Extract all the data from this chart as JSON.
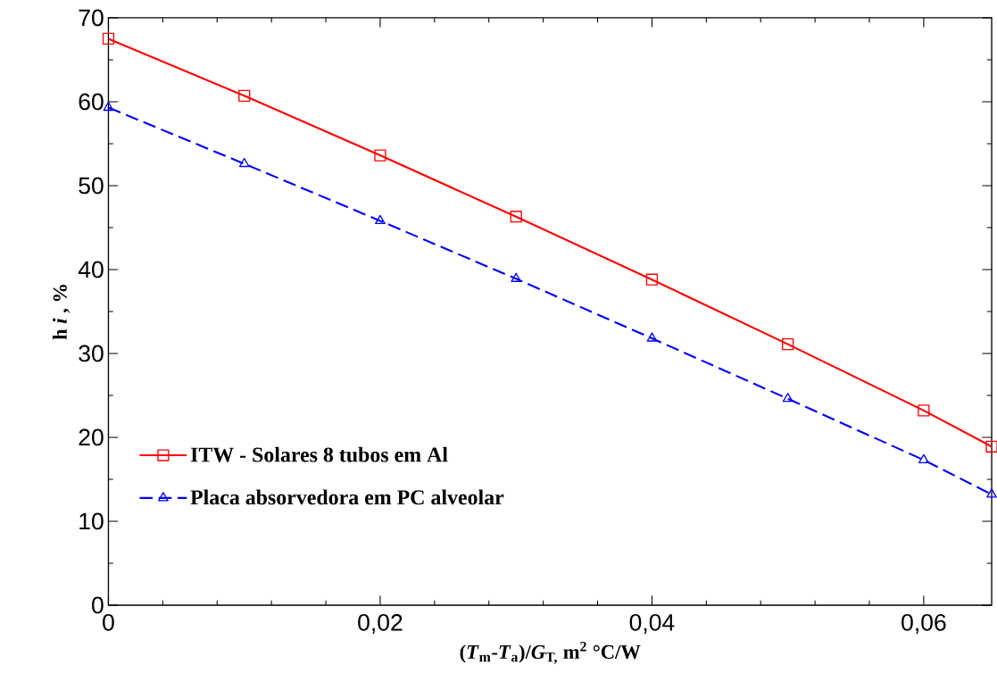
{
  "chart_data": {
    "type": "line",
    "xlabel": "(*T*$_{m}$-*T*$_{a}$)/*G*$_{T,}$ m$^{2}$ °C/W",
    "ylabel": "h *i* , %",
    "x": [
      0,
      0.01,
      0.02,
      0.03,
      0.04,
      0.05,
      0.06,
      0.065
    ],
    "series": [
      {
        "name": "ITW - Solares 8 tubos em Al",
        "color": "#ff0000",
        "marker": "square",
        "line_style": "solid",
        "values": [
          67.5,
          60.7,
          53.6,
          46.3,
          38.8,
          31.1,
          23.2,
          18.9
        ]
      },
      {
        "name": "Placa absorvedora em PC alveolar",
        "color": "#0000ff",
        "marker": "triangle",
        "line_style": "dashed",
        "values": [
          59.3,
          52.6,
          45.8,
          38.9,
          31.8,
          24.6,
          17.3,
          13.2
        ]
      }
    ],
    "xlim": [
      0,
      0.065
    ],
    "xticks": [
      0,
      {
        "value": 0.02,
        "label": "0,02"
      },
      {
        "value": 0.04,
        "label": "0,04"
      },
      {
        "value": 0.06,
        "label": "0,06"
      }
    ],
    "ylim": [
      0,
      70
    ],
    "yticks": [
      0,
      10,
      20,
      30,
      40,
      50,
      60,
      70
    ],
    "grid": false,
    "legend": "left"
  }
}
